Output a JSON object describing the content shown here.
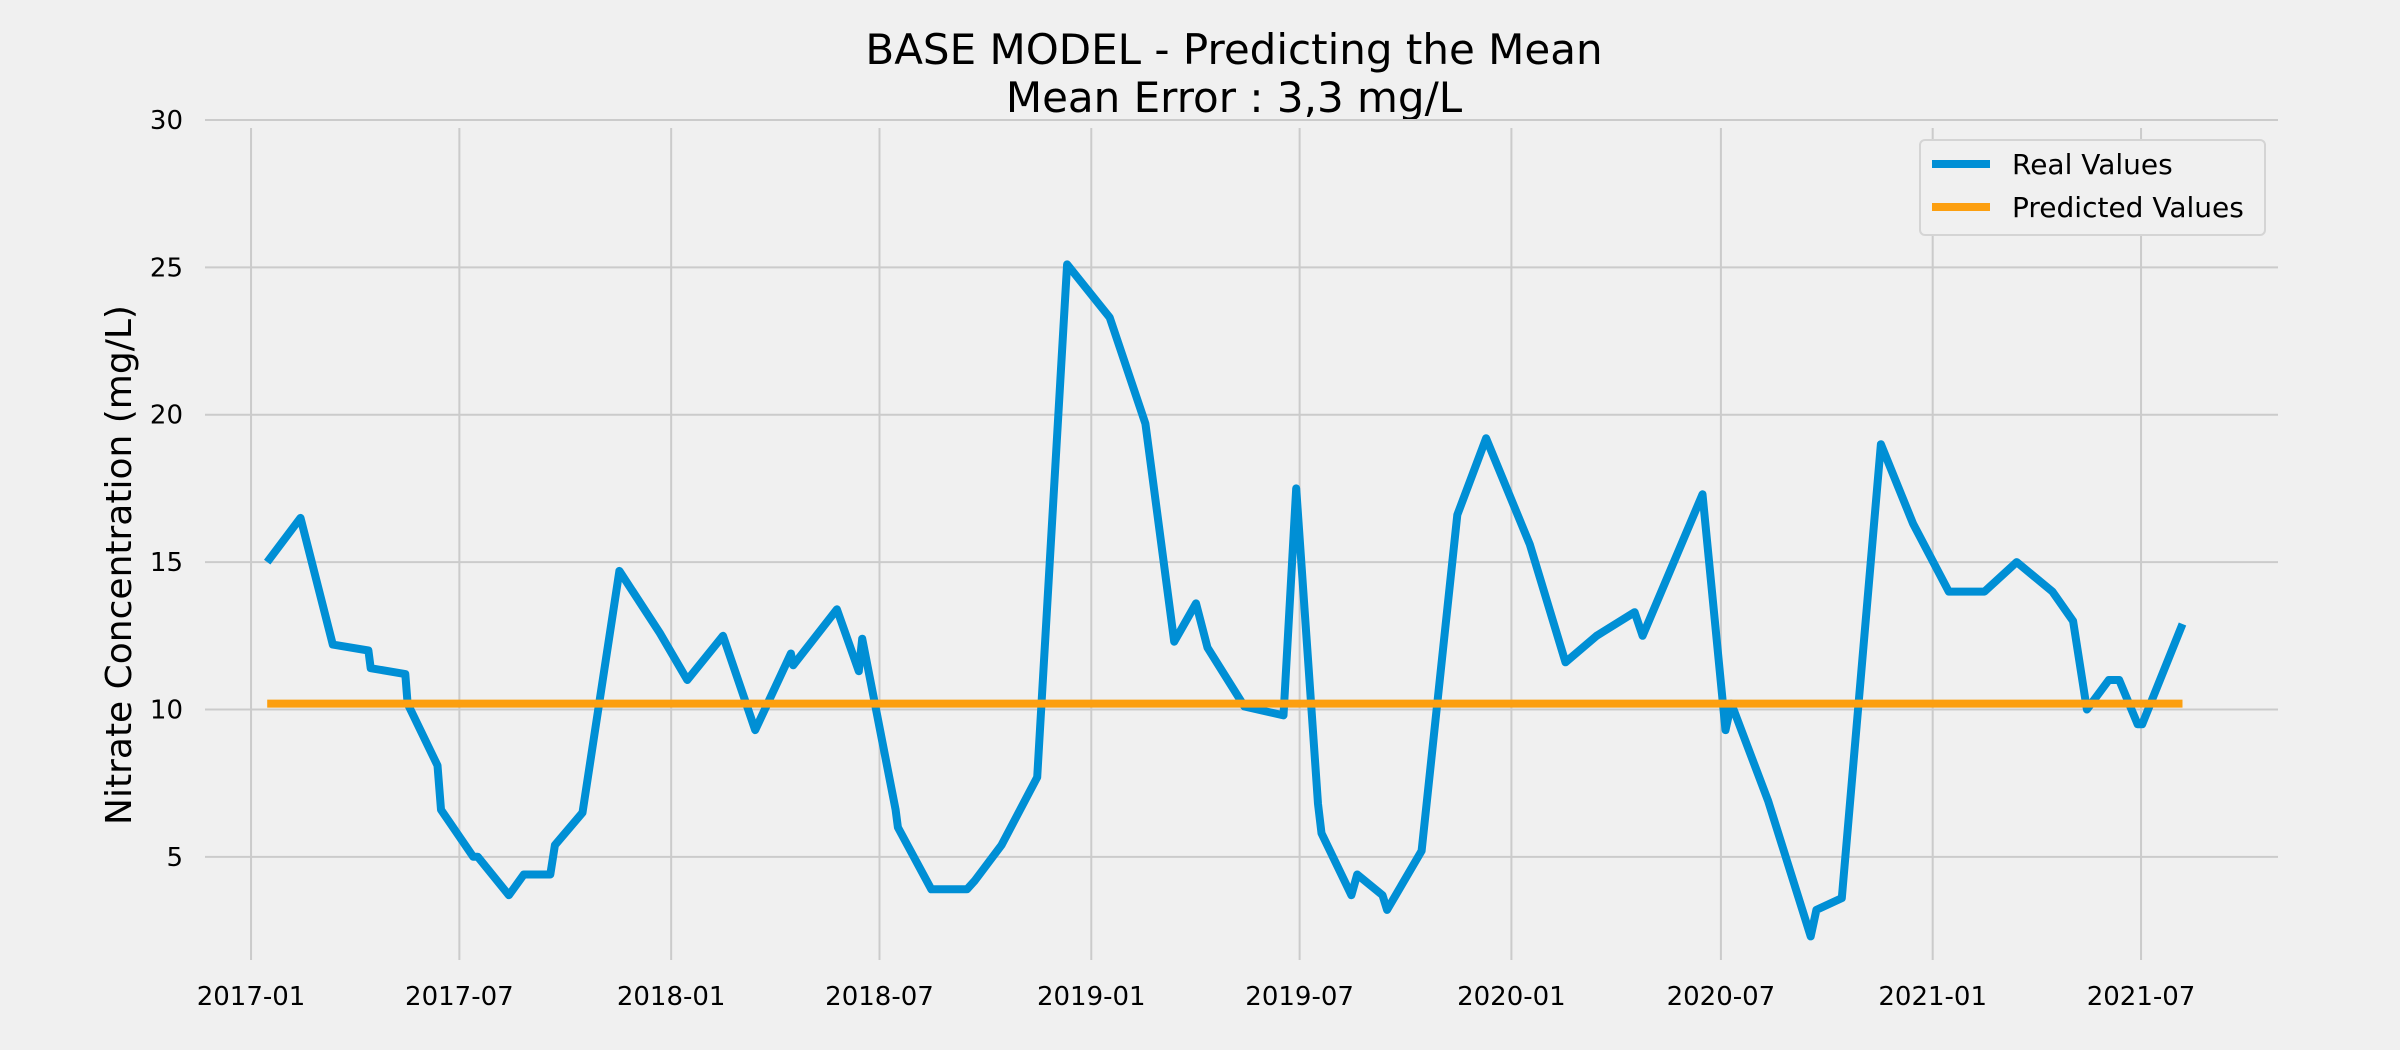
{
  "chart_data": {
    "type": "line",
    "title": "BASE MODEL - Predicting the Mean",
    "subtitle": "Mean Error : 3,3 mg/L",
    "xlabel": "",
    "ylabel": "Nitrate Concentration (mg/L)",
    "ylim": [
      1.5,
      30
    ],
    "yticks": [
      5,
      10,
      15,
      20,
      25,
      30
    ],
    "xlim": [
      "2016-11-22",
      "2021-10-28"
    ],
    "xticks": [
      "2017-01",
      "2017-07",
      "2018-01",
      "2018-07",
      "2019-01",
      "2019-07",
      "2020-01",
      "2020-07",
      "2021-01",
      "2021-07"
    ],
    "grid": true,
    "legend_position": "top-right",
    "colors": {
      "real": "#008fd5",
      "predicted": "#fc9f10",
      "grid": "#cbcbcb",
      "background": "#f0f0f0"
    },
    "series": [
      {
        "name": "Real Values",
        "points": [
          [
            "2017-01-15",
            15.0
          ],
          [
            "2017-02-13",
            16.5
          ],
          [
            "2017-03-13",
            12.2
          ],
          [
            "2017-04-13",
            12.0
          ],
          [
            "2017-04-15",
            11.4
          ],
          [
            "2017-05-15",
            11.2
          ],
          [
            "2017-05-17",
            10.2
          ],
          [
            "2017-06-12",
            8.1
          ],
          [
            "2017-06-15",
            6.6
          ],
          [
            "2017-07-13",
            5.0
          ],
          [
            "2017-07-17",
            5.0
          ],
          [
            "2017-08-13",
            3.7
          ],
          [
            "2017-08-26",
            4.4
          ],
          [
            "2017-09-13",
            4.4
          ],
          [
            "2017-09-18",
            4.4
          ],
          [
            "2017-09-22",
            5.4
          ],
          [
            "2017-10-16",
            6.5
          ],
          [
            "2017-11-17",
            14.7
          ],
          [
            "2017-12-22",
            12.6
          ],
          [
            "2018-01-15",
            11.0
          ],
          [
            "2018-02-15",
            12.5
          ],
          [
            "2018-03-15",
            9.3
          ],
          [
            "2018-04-15",
            11.9
          ],
          [
            "2018-04-17",
            11.5
          ],
          [
            "2018-05-25",
            13.4
          ],
          [
            "2018-06-13",
            11.3
          ],
          [
            "2018-06-16",
            12.4
          ],
          [
            "2018-07-15",
            6.6
          ],
          [
            "2018-07-17",
            6.0
          ],
          [
            "2018-08-15",
            3.9
          ],
          [
            "2018-09-15",
            3.9
          ],
          [
            "2018-09-22",
            4.2
          ],
          [
            "2018-10-15",
            5.4
          ],
          [
            "2018-11-15",
            7.7
          ],
          [
            "2018-12-11",
            25.1
          ],
          [
            "2019-01-17",
            23.3
          ],
          [
            "2019-02-17",
            19.7
          ],
          [
            "2019-03-14",
            12.3
          ],
          [
            "2019-04-02",
            13.6
          ],
          [
            "2019-04-12",
            12.1
          ],
          [
            "2019-05-14",
            10.1
          ],
          [
            "2019-06-17",
            9.8
          ],
          [
            "2019-06-28",
            17.5
          ],
          [
            "2019-07-17",
            6.8
          ],
          [
            "2019-07-20",
            5.8
          ],
          [
            "2019-08-15",
            3.7
          ],
          [
            "2019-08-20",
            4.4
          ],
          [
            "2019-09-11",
            3.7
          ],
          [
            "2019-09-15",
            3.2
          ],
          [
            "2019-10-15",
            5.2
          ],
          [
            "2019-11-15",
            16.6
          ],
          [
            "2019-12-10",
            19.2
          ],
          [
            "2020-01-17",
            15.6
          ],
          [
            "2020-02-17",
            11.6
          ],
          [
            "2020-03-15",
            12.5
          ],
          [
            "2020-04-17",
            13.3
          ],
          [
            "2020-04-24",
            12.5
          ],
          [
            "2020-06-15",
            17.3
          ],
          [
            "2020-07-05",
            9.3
          ],
          [
            "2020-07-10",
            10.2
          ],
          [
            "2020-08-11",
            6.9
          ],
          [
            "2020-09-17",
            2.3
          ],
          [
            "2020-09-22",
            3.2
          ],
          [
            "2020-10-14",
            3.6
          ],
          [
            "2020-11-17",
            19.0
          ],
          [
            "2020-12-15",
            16.3
          ],
          [
            "2021-01-15",
            14.0
          ],
          [
            "2021-02-15",
            14.0
          ],
          [
            "2021-03-15",
            15.0
          ],
          [
            "2021-04-15",
            14.0
          ],
          [
            "2021-05-03",
            13.0
          ],
          [
            "2021-05-15",
            10.0
          ],
          [
            "2021-06-03",
            11.0
          ],
          [
            "2021-06-12",
            11.0
          ],
          [
            "2021-06-28",
            9.5
          ],
          [
            "2021-07-02",
            9.5
          ],
          [
            "2021-08-06",
            12.9
          ]
        ]
      },
      {
        "name": "Predicted Values",
        "points": [
          [
            "2017-01-15",
            10.2
          ],
          [
            "2021-08-06",
            10.2
          ]
        ]
      }
    ]
  }
}
